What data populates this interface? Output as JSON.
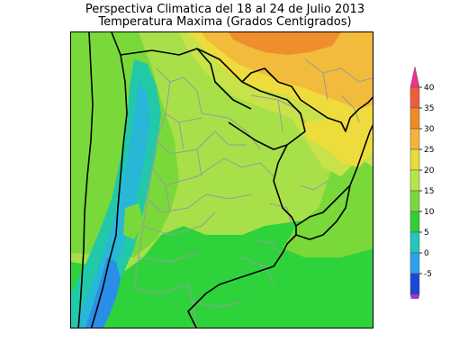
{
  "header": {
    "title": "Perspectiva Climatica del 18 al 24 de Julio 2013",
    "subtitle": "Temperatura Maxima (Grados Centigrados)"
  },
  "legend": {
    "ticks": [
      "40",
      "35",
      "30",
      "25",
      "20",
      "15",
      "10",
      "5",
      "0",
      "-5"
    ],
    "colors": [
      "#f0308c",
      "#ef5d3b",
      "#f08a26",
      "#f4b43a",
      "#e8dc37",
      "#b6e64a",
      "#79d93a",
      "#2fcf38",
      "#22c7b8",
      "#2aa2ec",
      "#1a48d8",
      "#a52fe0"
    ]
  },
  "map": {
    "palette": {
      "ocean_green": "#2ed33c",
      "bright_green": "#79d93a",
      "light_green": "#a8e04a",
      "yellow_green": "#c8e24a",
      "yellow": "#eddc3c",
      "light_orange": "#f3bb3c",
      "orange": "#ef8e2c",
      "teal": "#22c9a8",
      "cyan": "#28b7d6",
      "blue": "#2a8ee8",
      "borders": "#000000",
      "provinces": "#9a9a9a"
    }
  }
}
